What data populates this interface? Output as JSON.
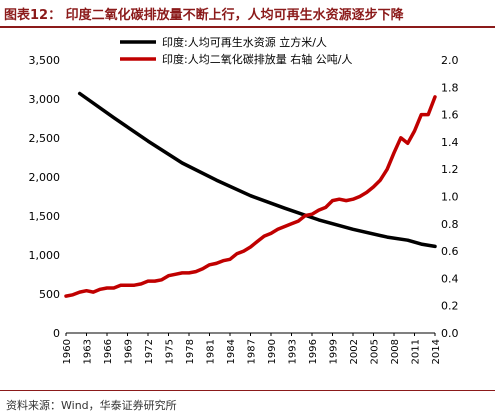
{
  "header": {
    "title": "图表12：  印度二氧化碳排放量不断上行，人均可再生水资源逐步下降"
  },
  "footer": {
    "source": "资料来源：Wind，华泰证券研究所"
  },
  "colors": {
    "water_series": "#000000",
    "co2_series": "#c00000",
    "title": "#8b1a1a"
  },
  "chart_data": {
    "type": "line",
    "title": "",
    "legend_placement": "top-center",
    "grid": false,
    "x_ticks": [
      "1960",
      "1963",
      "1966",
      "1969",
      "1972",
      "1975",
      "1978",
      "1981",
      "1984",
      "1987",
      "1990",
      "1993",
      "1996",
      "1999",
      "2002",
      "2005",
      "2008",
      "2011",
      "2014"
    ],
    "xlim": [
      1960,
      2014
    ],
    "y_left": {
      "ylim": [
        0,
        3500
      ],
      "ticks": [
        "0",
        "500",
        "1,000",
        "1,500",
        "2,000",
        "2,500",
        "3,000",
        "3,500"
      ]
    },
    "y_right": {
      "ylim": [
        0,
        2.0
      ],
      "ticks": [
        "0.0",
        "0.2",
        "0.4",
        "0.6",
        "0.8",
        "1.0",
        "1.2",
        "1.4",
        "1.6",
        "1.8",
        "2.0"
      ]
    },
    "series": [
      {
        "name": "印度:人均可再生水资源 立方米/人",
        "axis": "left",
        "color": "#000000",
        "x": [
          1962,
          1967,
          1972,
          1977,
          1982,
          1987,
          1992,
          1997,
          2002,
          2007,
          2010,
          2012,
          2014
        ],
        "y": [
          3070,
          2760,
          2460,
          2180,
          1960,
          1760,
          1600,
          1450,
          1330,
          1230,
          1190,
          1140,
          1110
        ]
      },
      {
        "name": "印度:人均二氧化碳排放量 右轴 公吨/人",
        "axis": "right",
        "color": "#c00000",
        "x": [
          1960,
          1961,
          1962,
          1963,
          1964,
          1965,
          1966,
          1967,
          1968,
          1969,
          1970,
          1971,
          1972,
          1973,
          1974,
          1975,
          1976,
          1977,
          1978,
          1979,
          1980,
          1981,
          1982,
          1983,
          1984,
          1985,
          1986,
          1987,
          1988,
          1989,
          1990,
          1991,
          1992,
          1993,
          1994,
          1995,
          1996,
          1997,
          1998,
          1999,
          2000,
          2001,
          2002,
          2003,
          2004,
          2005,
          2006,
          2007,
          2008,
          2009,
          2010,
          2011,
          2012,
          2013,
          2014
        ],
        "y": [
          0.27,
          0.28,
          0.3,
          0.31,
          0.3,
          0.32,
          0.33,
          0.33,
          0.35,
          0.35,
          0.35,
          0.36,
          0.38,
          0.38,
          0.39,
          0.42,
          0.43,
          0.44,
          0.44,
          0.45,
          0.47,
          0.5,
          0.51,
          0.53,
          0.54,
          0.58,
          0.6,
          0.63,
          0.67,
          0.71,
          0.73,
          0.76,
          0.78,
          0.8,
          0.82,
          0.86,
          0.87,
          0.9,
          0.92,
          0.97,
          0.98,
          0.97,
          0.98,
          1.0,
          1.03,
          1.07,
          1.12,
          1.2,
          1.32,
          1.43,
          1.39,
          1.48,
          1.6,
          1.6,
          1.73
        ]
      }
    ]
  }
}
